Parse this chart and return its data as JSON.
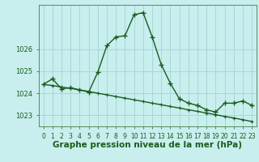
{
  "title": "Graphe pression niveau de la mer (hPa)",
  "background_color": "#c8eeee",
  "grid_color": "#a8d8d8",
  "line_color": "#1a5c1a",
  "x_values": [
    0,
    1,
    2,
    3,
    4,
    5,
    6,
    7,
    8,
    9,
    10,
    11,
    12,
    13,
    14,
    15,
    16,
    17,
    18,
    19,
    20,
    21,
    22,
    23
  ],
  "line1": [
    1024.4,
    1024.65,
    1024.2,
    1024.25,
    1024.15,
    1024.05,
    1024.95,
    1026.15,
    1026.55,
    1026.6,
    1027.55,
    1027.65,
    1026.55,
    1025.3,
    1024.45,
    1023.75,
    1023.55,
    1023.45,
    1023.25,
    1023.15,
    1023.55,
    1023.55,
    1023.65,
    1023.45
  ],
  "line2": [
    1024.4,
    1024.35,
    1024.28,
    1024.22,
    1024.15,
    1024.08,
    1024.0,
    1023.93,
    1023.85,
    1023.78,
    1023.7,
    1023.63,
    1023.55,
    1023.48,
    1023.4,
    1023.33,
    1023.25,
    1023.18,
    1023.1,
    1023.03,
    1022.95,
    1022.88,
    1022.8,
    1022.72
  ],
  "ylim": [
    1022.5,
    1028.0
  ],
  "yticks": [
    1023,
    1024,
    1025,
    1026
  ],
  "ytick_labels": [
    "1023",
    "1024",
    "1025",
    "1026"
  ],
  "xlim": [
    -0.5,
    23.5
  ],
  "title_fontsize": 7.5,
  "tick_fontsize": 6,
  "line_width": 1.0,
  "marker_size": 4.0,
  "marker_ew": 1.0
}
